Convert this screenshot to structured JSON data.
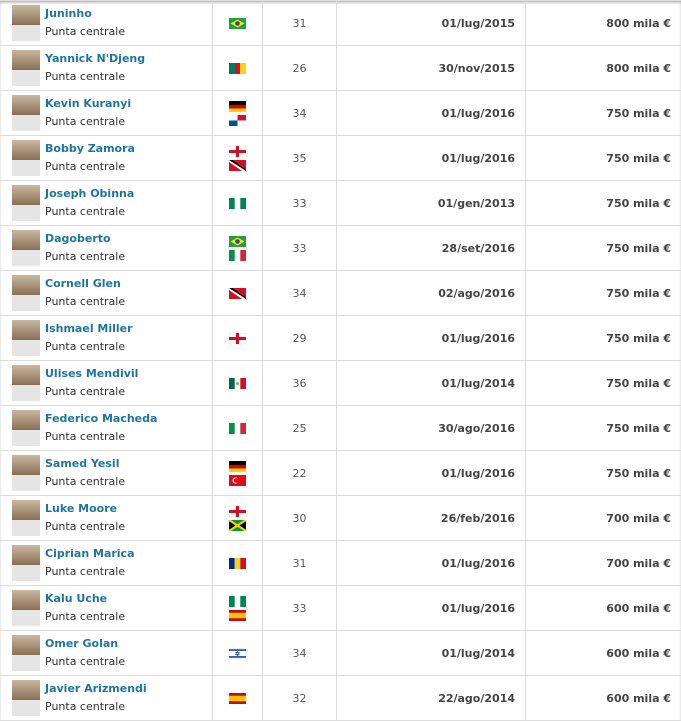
{
  "position_label": "Punta centrale",
  "players": [
    {
      "name": "Juninho",
      "flags": [
        "brazil"
      ],
      "age": "31",
      "date": "01/lug/2015",
      "value": "800 mila €"
    },
    {
      "name": "Yannick N'Djeng",
      "flags": [
        "cameroon"
      ],
      "age": "26",
      "date": "30/nov/2015",
      "value": "800 mila €"
    },
    {
      "name": "Kevin Kuranyi",
      "flags": [
        "germany",
        "panama"
      ],
      "age": "34",
      "date": "01/lug/2016",
      "value": "750 mila €"
    },
    {
      "name": "Bobby Zamora",
      "flags": [
        "england",
        "trinidad"
      ],
      "age": "35",
      "date": "01/lug/2016",
      "value": "750 mila €"
    },
    {
      "name": "Joseph Obinna",
      "flags": [
        "nigeria"
      ],
      "age": "33",
      "date": "01/gen/2013",
      "value": "750 mila €"
    },
    {
      "name": "Dagoberto",
      "flags": [
        "brazil",
        "italy"
      ],
      "age": "33",
      "date": "28/set/2016",
      "value": "750 mila €"
    },
    {
      "name": "Cornell Glen",
      "flags": [
        "trinidad"
      ],
      "age": "34",
      "date": "02/ago/2016",
      "value": "750 mila €"
    },
    {
      "name": "Ishmael Miller",
      "flags": [
        "england"
      ],
      "age": "29",
      "date": "01/lug/2016",
      "value": "750 mila €"
    },
    {
      "name": "Ulises Mendivil",
      "flags": [
        "mexico"
      ],
      "age": "36",
      "date": "01/lug/2014",
      "value": "750 mila €"
    },
    {
      "name": "Federico Macheda",
      "flags": [
        "italy"
      ],
      "age": "25",
      "date": "30/ago/2016",
      "value": "750 mila €"
    },
    {
      "name": "Samed Yesil",
      "flags": [
        "germany",
        "turkey"
      ],
      "age": "22",
      "date": "01/lug/2016",
      "value": "750 mila €"
    },
    {
      "name": "Luke Moore",
      "flags": [
        "england",
        "jamaica"
      ],
      "age": "30",
      "date": "26/feb/2016",
      "value": "700 mila €"
    },
    {
      "name": "Ciprian Marica",
      "flags": [
        "romania"
      ],
      "age": "31",
      "date": "01/lug/2016",
      "value": "700 mila €"
    },
    {
      "name": "Kalu Uche",
      "flags": [
        "nigeria",
        "spain"
      ],
      "age": "33",
      "date": "01/lug/2016",
      "value": "600 mila €"
    },
    {
      "name": "Omer Golan",
      "flags": [
        "israel"
      ],
      "age": "34",
      "date": "01/lug/2014",
      "value": "600 mila €"
    },
    {
      "name": "Javier Arizmendi",
      "flags": [
        "spain"
      ],
      "age": "32",
      "date": "22/ago/2014",
      "value": "600 mila €"
    }
  ]
}
